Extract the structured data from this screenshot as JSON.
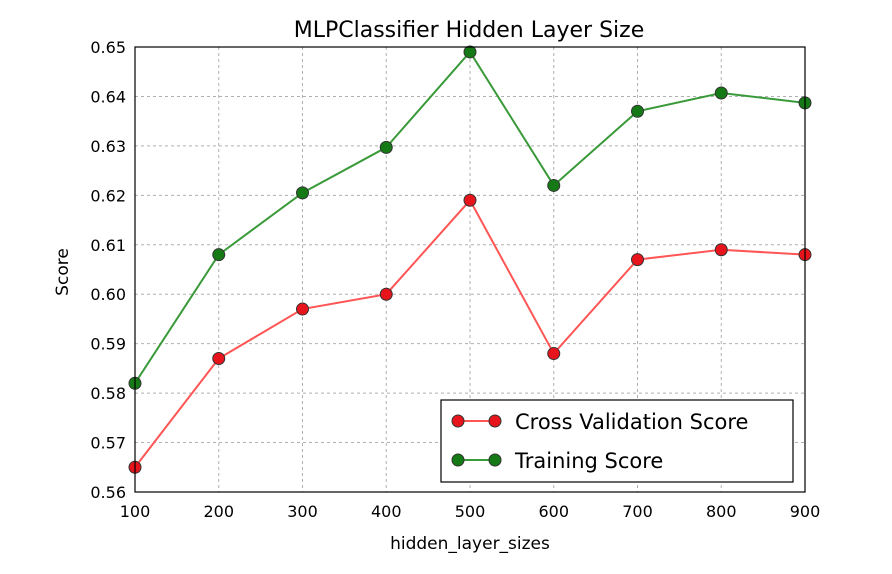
{
  "chart_data": {
    "type": "line",
    "title": "MLPClassifier Hidden Layer Size",
    "xlabel": "hidden_layer_sizes",
    "ylabel": "Score",
    "xlim": [
      100,
      900
    ],
    "ylim": [
      0.56,
      0.65
    ],
    "grid": true,
    "legend_position": "lower-right",
    "x": [
      100,
      200,
      300,
      400,
      500,
      600,
      700,
      800,
      900
    ],
    "x_ticks": [
      "100",
      "200",
      "300",
      "400",
      "500",
      "600",
      "700",
      "800",
      "900"
    ],
    "y_ticks": [
      "0.56",
      "0.57",
      "0.58",
      "0.59",
      "0.60",
      "0.61",
      "0.62",
      "0.63",
      "0.64",
      "0.65"
    ],
    "series": [
      {
        "name": "Cross Validation Score",
        "color": "#ff5555",
        "marker_color": "#e8141c",
        "values": [
          0.565,
          0.587,
          0.597,
          0.6,
          0.619,
          0.588,
          0.607,
          0.609,
          0.608
        ]
      },
      {
        "name": "Training Score",
        "color": "#3a9a3a",
        "marker_color": "#157a15",
        "values": [
          0.582,
          0.608,
          0.6205,
          0.6297,
          0.649,
          0.622,
          0.637,
          0.6407,
          0.6387
        ]
      }
    ]
  }
}
